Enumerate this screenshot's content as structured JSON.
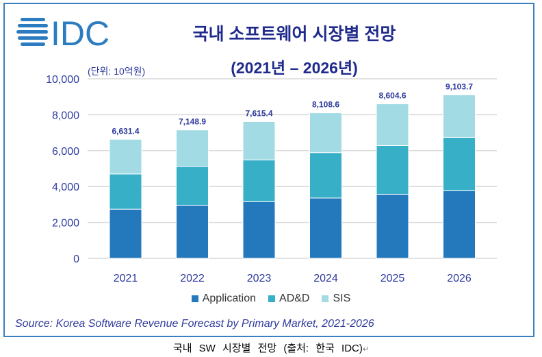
{
  "header": {
    "logo_text": "IDC",
    "title": "국내 소프트웨어 시장별 전망",
    "subtitle": "(2021년 – 2026년)",
    "unit": "(단위: 10억원)"
  },
  "colors": {
    "Application": "#2479bd",
    "AD&D": "#37afc7",
    "SIS": "#a3dbe5",
    "text": "#2e3a9c",
    "frame": "#3a7fc1"
  },
  "chart_data": {
    "type": "bar",
    "stacked": true,
    "title": "국내 소프트웨어 시장별 전망",
    "subtitle": "(2021년 – 2026년)",
    "ylabel": "(단위: 10억원)",
    "ylim": [
      0,
      10000
    ],
    "yticks": [
      "0",
      "2,000",
      "4,000",
      "6,000",
      "8,000",
      "10,000"
    ],
    "grid": true,
    "legend": "bottom",
    "categories": [
      "2021",
      "2022",
      "2023",
      "2024",
      "2025",
      "2026"
    ],
    "series": [
      {
        "name": "Application",
        "values": [
          2740,
          2960,
          3160,
          3360,
          3570,
          3770
        ]
      },
      {
        "name": "AD&D",
        "values": [
          1960,
          2160,
          2320,
          2530,
          2710,
          2970
        ]
      },
      {
        "name": "SIS",
        "values": [
          1931.4,
          2028.9,
          2135.4,
          2218.6,
          2324.6,
          2363.7
        ]
      }
    ],
    "totals": [
      "6,631.4",
      "7,148.9",
      "7,615.4",
      "8,108.6",
      "8,604.6",
      "9,103.7"
    ],
    "total_values": [
      6631.4,
      7148.9,
      7615.4,
      8108.6,
      8604.6,
      9103.7
    ]
  },
  "source": "Source: Korea Software Revenue Forecast by Primary Market, 2021-2026",
  "caption": "국내 SW 시장별 전망 (출처: 한국 IDC)",
  "caption_mark": "↵"
}
